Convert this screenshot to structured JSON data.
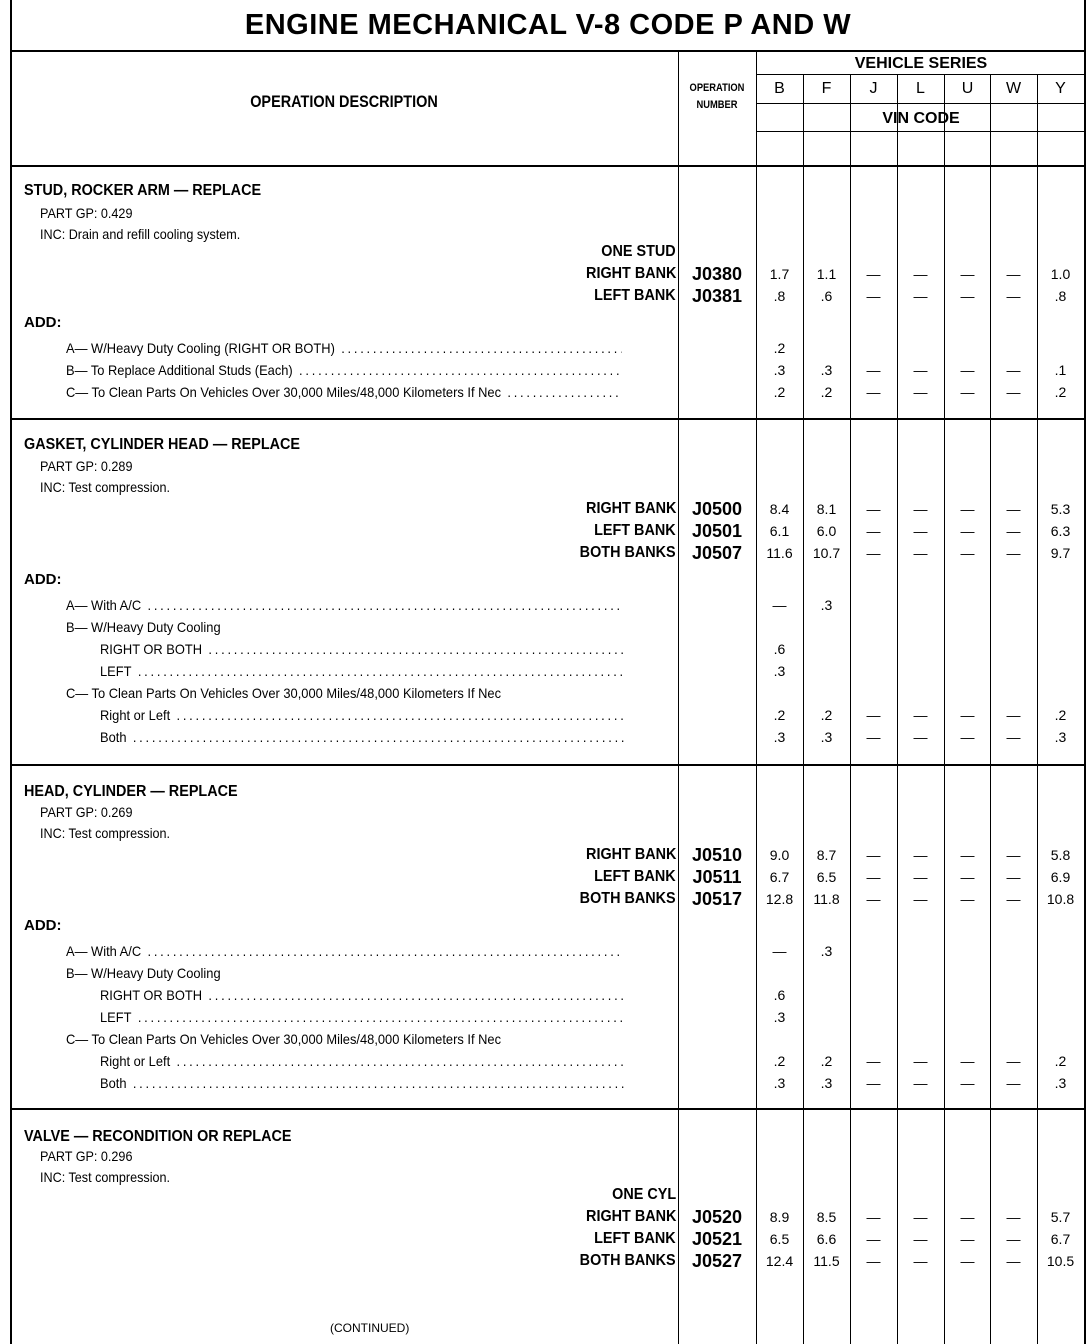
{
  "title": "ENGINE MECHANICAL V-8 CODE P AND W",
  "header": {
    "operation_description": "OPERATION DESCRIPTION",
    "operation_number": [
      "OPERATION",
      "NUMBER"
    ],
    "vehicle_series": "VEHICLE SERIES",
    "series": [
      "B",
      "F",
      "J",
      "L",
      "U",
      "W",
      "Y"
    ],
    "vin_code": "VIN CODE"
  },
  "sections": [
    {
      "title": "STUD, ROCKER ARM — REPLACE",
      "part_gp": "PART GP: 0.429",
      "inc": "INC: Drain and refill cooling system.",
      "lines": [
        {
          "label": "ONE STUD",
          "op": "",
          "values": [
            "",
            "",
            "",
            "",
            "",
            "",
            ""
          ]
        },
        {
          "label": "RIGHT BANK",
          "op": "J0380",
          "values": [
            "1.7",
            "1.1",
            "—",
            "—",
            "—",
            "—",
            "1.0"
          ]
        },
        {
          "label": "LEFT BANK",
          "op": "J0381",
          "values": [
            ".8",
            ".6",
            "—",
            "—",
            "—",
            "—",
            ".8"
          ]
        }
      ],
      "add_label": "ADD:",
      "add_items": [
        {
          "text": "A— W/Heavy Duty Cooling (RIGHT OR BOTH)",
          "indent": 0,
          "leader": true,
          "values": [
            ".2",
            "",
            "",
            "",
            "",
            "",
            ""
          ]
        },
        {
          "text": "B— To Replace Additional Studs (Each)",
          "indent": 0,
          "leader": true,
          "values": [
            ".3",
            ".3",
            "—",
            "—",
            "—",
            "—",
            ".1"
          ]
        },
        {
          "text": "C— To Clean Parts On Vehicles Over 30,000 Miles/48,000 Kilometers If Nec",
          "indent": 0,
          "leader": true,
          "values": [
            ".2",
            ".2",
            "—",
            "—",
            "—",
            "—",
            ".2"
          ]
        }
      ]
    },
    {
      "title": "GASKET, CYLINDER HEAD — REPLACE",
      "part_gp": "PART GP: 0.289",
      "inc": "INC: Test compression.",
      "lines": [
        {
          "label": "RIGHT BANK",
          "op": "J0500",
          "values": [
            "8.4",
            "8.1",
            "—",
            "—",
            "—",
            "—",
            "5.3"
          ]
        },
        {
          "label": "LEFT BANK",
          "op": "J0501",
          "values": [
            "6.1",
            "6.0",
            "—",
            "—",
            "—",
            "—",
            "6.3"
          ]
        },
        {
          "label": "BOTH BANKS",
          "op": "J0507",
          "values": [
            "11.6",
            "10.7",
            "—",
            "—",
            "—",
            "—",
            "9.7"
          ]
        }
      ],
      "add_label": "ADD:",
      "add_items": [
        {
          "text": "A— With A/C",
          "indent": 0,
          "leader": true,
          "values": [
            "—",
            ".3",
            "",
            "",
            "",
            "",
            ""
          ]
        },
        {
          "text": "B— W/Heavy Duty Cooling",
          "indent": 0,
          "leader": false,
          "values": [
            "",
            "",
            "",
            "",
            "",
            "",
            ""
          ]
        },
        {
          "text": "RIGHT OR BOTH",
          "indent": 1,
          "leader": true,
          "values": [
            ".6",
            "",
            "",
            "",
            "",
            "",
            ""
          ]
        },
        {
          "text": "LEFT",
          "indent": 1,
          "leader": true,
          "values": [
            ".3",
            "",
            "",
            "",
            "",
            "",
            ""
          ]
        },
        {
          "text": "C— To Clean Parts On Vehicles Over 30,000 Miles/48,000 Kilometers If Nec",
          "indent": 0,
          "leader": false,
          "values": [
            "",
            "",
            "",
            "",
            "",
            "",
            ""
          ]
        },
        {
          "text": "Right or Left",
          "indent": 1,
          "leader": true,
          "values": [
            ".2",
            ".2",
            "—",
            "—",
            "—",
            "—",
            ".2"
          ]
        },
        {
          "text": "Both",
          "indent": 1,
          "leader": true,
          "values": [
            ".3",
            ".3",
            "—",
            "—",
            "—",
            "—",
            ".3"
          ]
        }
      ]
    },
    {
      "title": "HEAD, CYLINDER — REPLACE",
      "part_gp": "PART GP: 0.269",
      "inc": "INC: Test compression.",
      "lines": [
        {
          "label": "RIGHT BANK",
          "op": "J0510",
          "values": [
            "9.0",
            "8.7",
            "—",
            "—",
            "—",
            "—",
            "5.8"
          ]
        },
        {
          "label": "LEFT BANK",
          "op": "J0511",
          "values": [
            "6.7",
            "6.5",
            "—",
            "—",
            "—",
            "—",
            "6.9"
          ]
        },
        {
          "label": "BOTH BANKS",
          "op": "J0517",
          "values": [
            "12.8",
            "11.8",
            "—",
            "—",
            "—",
            "—",
            "10.8"
          ]
        }
      ],
      "add_label": "ADD:",
      "add_items": [
        {
          "text": "A— With A/C",
          "indent": 0,
          "leader": true,
          "values": [
            "—",
            ".3",
            "",
            "",
            "",
            "",
            ""
          ]
        },
        {
          "text": "B— W/Heavy Duty Cooling",
          "indent": 0,
          "leader": false,
          "values": [
            "",
            "",
            "",
            "",
            "",
            "",
            ""
          ]
        },
        {
          "text": "RIGHT OR BOTH",
          "indent": 1,
          "leader": true,
          "values": [
            ".6",
            "",
            "",
            "",
            "",
            "",
            ""
          ]
        },
        {
          "text": "LEFT",
          "indent": 1,
          "leader": true,
          "values": [
            ".3",
            "",
            "",
            "",
            "",
            "",
            ""
          ]
        },
        {
          "text": "C— To Clean Parts On Vehicles Over 30,000 Miles/48,000 Kilometers If Nec",
          "indent": 0,
          "leader": false,
          "values": [
            "",
            "",
            "",
            "",
            "",
            "",
            ""
          ]
        },
        {
          "text": "Right or Left",
          "indent": 1,
          "leader": true,
          "values": [
            ".2",
            ".2",
            "—",
            "—",
            "—",
            "—",
            ".2"
          ]
        },
        {
          "text": "Both",
          "indent": 1,
          "leader": true,
          "values": [
            ".3",
            ".3",
            "—",
            "—",
            "—",
            "—",
            ".3"
          ]
        }
      ]
    },
    {
      "title": "VALVE — RECONDITION OR REPLACE",
      "part_gp": "PART GP: 0.296",
      "inc": "INC: Test compression.",
      "lines": [
        {
          "label": "ONE CYL",
          "op": "",
          "values": [
            "",
            "",
            "",
            "",
            "",
            "",
            ""
          ]
        },
        {
          "label": "RIGHT BANK",
          "op": "J0520",
          "values": [
            "8.9",
            "8.5",
            "—",
            "—",
            "—",
            "—",
            "5.7"
          ]
        },
        {
          "label": "LEFT BANK",
          "op": "J0521",
          "values": [
            "6.5",
            "6.6",
            "—",
            "—",
            "—",
            "—",
            "6.7"
          ]
        },
        {
          "label": "BOTH BANKS",
          "op": "J0527",
          "values": [
            "12.4",
            "11.5",
            "—",
            "—",
            "—",
            "—",
            "10.5"
          ]
        }
      ],
      "add_label": "",
      "add_items": []
    }
  ],
  "footer": "(CONTINUED)"
}
